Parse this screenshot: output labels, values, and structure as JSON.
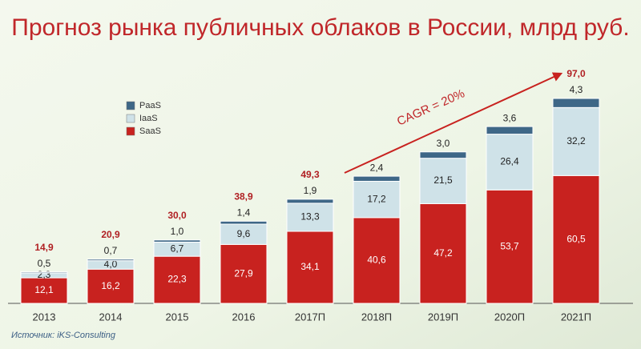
{
  "chart_data": {
    "type": "stacked_bar",
    "title": "Прогноз рынка публичных облаков в России, млрд руб.",
    "categories": [
      "2013",
      "2014",
      "2015",
      "2016",
      "2017П",
      "2018П",
      "2019П",
      "2020П",
      "2021П"
    ],
    "series": [
      {
        "name": "SaaS",
        "color": "#c8221f",
        "values": [
          12.1,
          16.2,
          22.3,
          27.9,
          34.1,
          40.6,
          47.2,
          53.7,
          60.5
        ],
        "value_labels": [
          "12,1",
          "16,2",
          "22,3",
          "27,9",
          "34,1",
          "40,6",
          "47,2",
          "53,7",
          "60,5"
        ]
      },
      {
        "name": "IaaS",
        "color": "#cfe2e8",
        "values": [
          2.3,
          4.0,
          6.7,
          9.6,
          13.3,
          17.2,
          21.5,
          26.4,
          32.2
        ],
        "value_labels": [
          "2,3",
          "4,0",
          "6,7",
          "9,6",
          "13,3",
          "17,2",
          "21,5",
          "26,4",
          "32,2"
        ]
      },
      {
        "name": "PaaS",
        "color": "#3e6787",
        "values": [
          0.5,
          0.7,
          1.0,
          1.4,
          1.9,
          2.4,
          3.0,
          3.6,
          4.3
        ],
        "value_labels": [
          "0,5",
          "0,7",
          "1,0",
          "1,4",
          "1,9",
          "2,4",
          "3,0",
          "3,6",
          "4,3"
        ]
      }
    ],
    "totals": [
      14.9,
      20.9,
      30.0,
      38.9,
      49.3,
      null,
      null,
      null,
      97.0
    ],
    "total_labels": [
      "14,9",
      "20,9",
      "30,0",
      "38,9",
      "49,3",
      null,
      null,
      null,
      "97,0"
    ],
    "annotation": "CAGR = 20%",
    "source": "Источник: iKS-Consulting"
  }
}
